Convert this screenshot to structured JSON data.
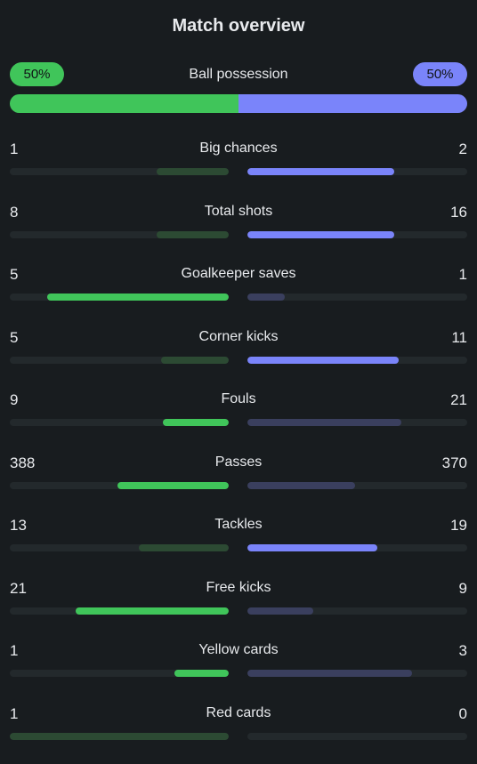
{
  "title": "Match overview",
  "possession": {
    "label": "Ball possession",
    "home": "50%",
    "away": "50%",
    "home_value": 50,
    "away_value": 50
  },
  "colors": {
    "home_strong": "#40c55a",
    "home_weak": "#2c4a33",
    "away_strong": "#7a84fa",
    "away_weak": "#3a3f5e",
    "track": "#23292c",
    "background": "#181c1f"
  },
  "stats": [
    {
      "label": "Big chances",
      "home": "1",
      "away": "2",
      "home_fill": 0.33,
      "away_fill": 0.67,
      "leader": "away"
    },
    {
      "label": "Total shots",
      "home": "8",
      "away": "16",
      "home_fill": 0.33,
      "away_fill": 0.67,
      "leader": "away"
    },
    {
      "label": "Goalkeeper saves",
      "home": "5",
      "away": "1",
      "home_fill": 0.83,
      "away_fill": 0.17,
      "leader": "home"
    },
    {
      "label": "Corner kicks",
      "home": "5",
      "away": "11",
      "home_fill": 0.31,
      "away_fill": 0.69,
      "leader": "away"
    },
    {
      "label": "Fouls",
      "home": "9",
      "away": "21",
      "home_fill": 0.3,
      "away_fill": 0.7,
      "leader": "home"
    },
    {
      "label": "Passes",
      "home": "388",
      "away": "370",
      "home_fill": 0.51,
      "away_fill": 0.49,
      "leader": "home"
    },
    {
      "label": "Tackles",
      "home": "13",
      "away": "19",
      "home_fill": 0.41,
      "away_fill": 0.59,
      "leader": "away"
    },
    {
      "label": "Free kicks",
      "home": "21",
      "away": "9",
      "home_fill": 0.7,
      "away_fill": 0.3,
      "leader": "home"
    },
    {
      "label": "Yellow cards",
      "home": "1",
      "away": "3",
      "home_fill": 0.25,
      "away_fill": 0.75,
      "leader": "home"
    },
    {
      "label": "Red cards",
      "home": "1",
      "away": "0",
      "home_fill": 1.0,
      "away_fill": 0.0,
      "leader": "away"
    }
  ]
}
